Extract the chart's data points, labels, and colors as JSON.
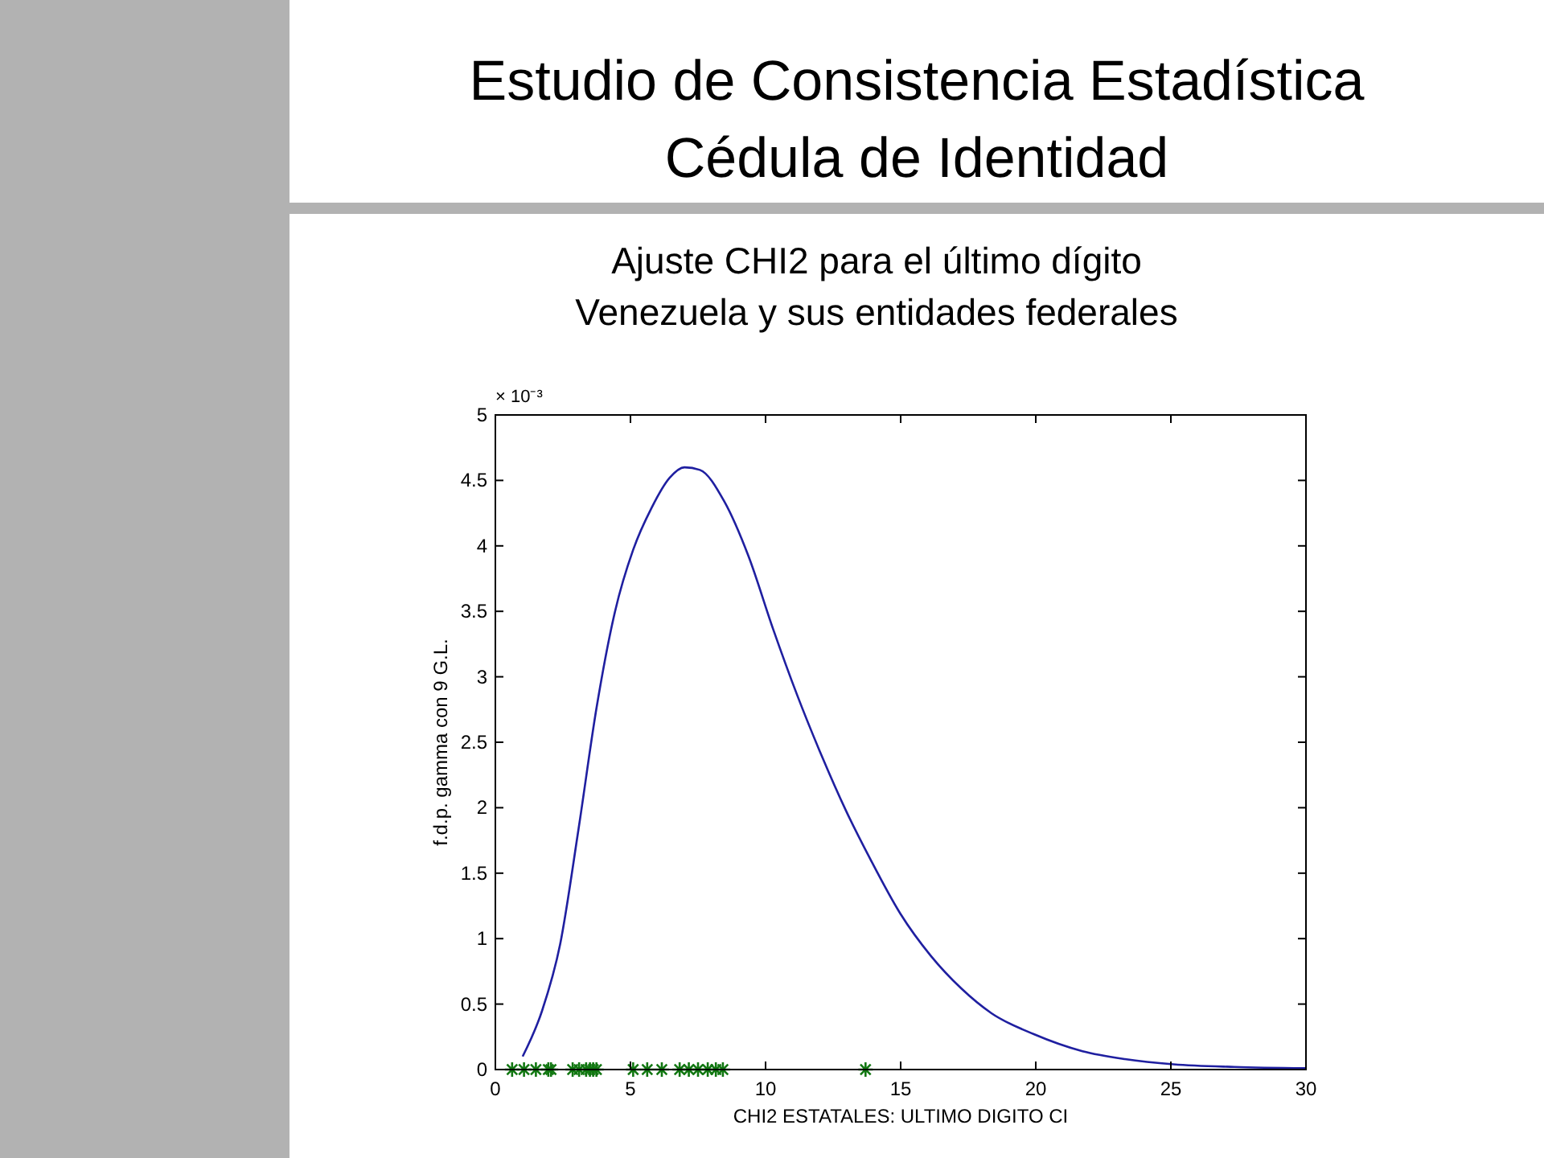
{
  "chart_data": {
    "type": "line",
    "title": "Estudio de Consistencia Estadística\nCédula de Identidad",
    "subtitle": "Ajuste CHI2 para el último dígito\nVenezuela y sus entidades federales",
    "xlabel": "CHI2 ESTATALES: ULTIMO DIGITO CI",
    "ylabel": "f.d.p. gamma con 9 G.L.",
    "annotations": [
      "× 10⁻³"
    ],
    "xlim": [
      0,
      30
    ],
    "xticks": [
      0,
      5,
      10,
      15,
      20,
      25,
      30
    ],
    "ylim": [
      0,
      5
    ],
    "yticks": [
      0,
      0.5,
      1,
      1.5,
      2,
      2.5,
      3,
      3.5,
      4,
      4.5,
      5
    ],
    "grid": false,
    "series": [
      {
        "type": "line",
        "color": "#1f1fa0",
        "line_style": "solid",
        "marker": "none",
        "x": [
          1.01,
          1.73,
          2.4,
          3.08,
          3.75,
          4.43,
          5.1,
          5.78,
          6.45,
          7.0,
          7.57,
          8.47,
          9.37,
          10.27,
          11.17,
          12.07,
          12.97,
          13.87,
          14.99,
          16.11,
          17.24,
          18.36,
          19.93,
          21.73,
          23.3,
          25.1,
          27.35,
          30
        ],
        "values": [
          0.1,
          0.45,
          0.96,
          1.84,
          2.77,
          3.5,
          3.97,
          4.29,
          4.52,
          4.6,
          4.58,
          4.34,
          3.92,
          3.37,
          2.86,
          2.4,
          1.98,
          1.61,
          1.19,
          0.87,
          0.62,
          0.43,
          0.27,
          0.14,
          0.08,
          0.04,
          0.02,
          0.01
        ]
      },
      {
        "type": "scatter",
        "color": "#117711",
        "marker": "cross",
        "x": [
          0.62,
          1.06,
          1.5,
          1.96,
          2.06,
          2.86,
          3.1,
          3.36,
          3.5,
          3.62,
          3.74,
          5.1,
          5.62,
          6.16,
          6.82,
          7.16,
          7.5,
          7.86,
          8.16,
          8.42,
          13.7
        ],
        "values": [
          0,
          0,
          0,
          0,
          0,
          0,
          0,
          0,
          0,
          0,
          0,
          0,
          0,
          0,
          0,
          0,
          0,
          0,
          0,
          0,
          0
        ]
      }
    ]
  }
}
